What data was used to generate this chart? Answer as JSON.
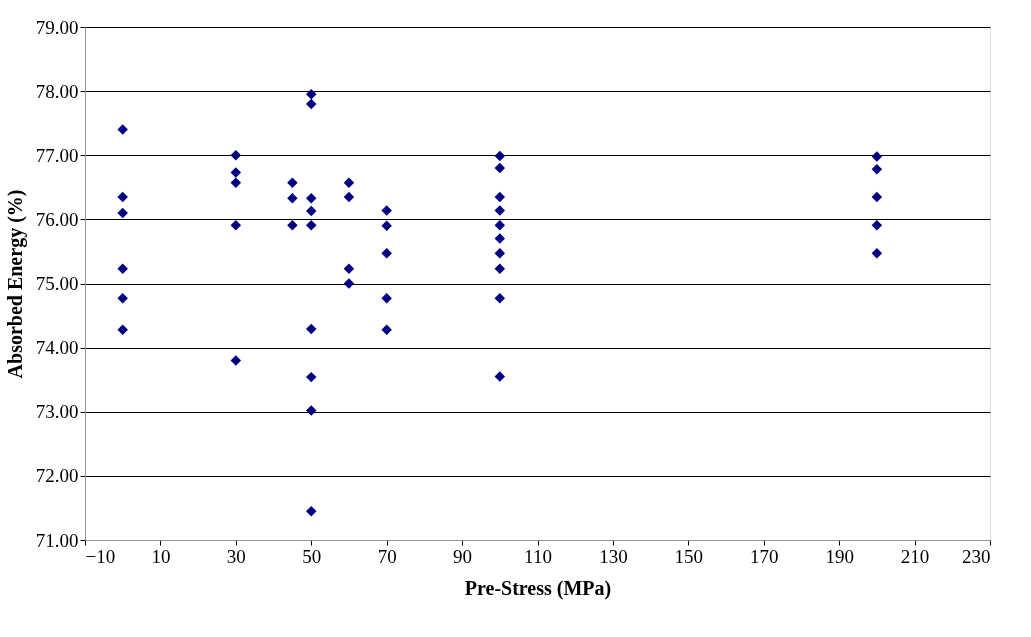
{
  "chart_data": {
    "type": "scatter",
    "xlabel": "Pre-Stress (MPa)",
    "ylabel": "Absorbed Energy (%)",
    "x": [
      0,
      0,
      0,
      0,
      0,
      0,
      30,
      30,
      30,
      30,
      30,
      45,
      45,
      45,
      50,
      50,
      50,
      50,
      50,
      50,
      50,
      50,
      50,
      60,
      60,
      60,
      60,
      70,
      70,
      70,
      70,
      70,
      100,
      100,
      100,
      100,
      100,
      100,
      100,
      100,
      100,
      100,
      200,
      200,
      200,
      200,
      200
    ],
    "values": [
      77.4,
      76.35,
      76.1,
      75.23,
      74.77,
      74.28,
      77.0,
      76.73,
      76.57,
      75.91,
      73.8,
      76.57,
      76.33,
      75.91,
      77.95,
      77.8,
      76.33,
      76.13,
      75.91,
      74.29,
      73.54,
      73.02,
      71.45,
      76.57,
      76.35,
      75.23,
      75.0,
      76.14,
      75.9,
      75.47,
      74.77,
      74.28,
      76.99,
      76.8,
      76.35,
      76.14,
      75.91,
      75.7,
      75.47,
      75.23,
      74.77,
      73.55,
      76.98,
      76.78,
      76.35,
      75.91,
      75.47
    ],
    "color": "#000080",
    "marker": "diamond",
    "xlim": [
      -10,
      230
    ],
    "xticks": [
      -10,
      10,
      30,
      50,
      70,
      90,
      110,
      130,
      150,
      170,
      190,
      210,
      230
    ],
    "ylim": [
      71,
      79
    ],
    "yticks": [
      {
        "value": 71,
        "label": "71.00"
      },
      {
        "value": 72,
        "label": "72.00"
      },
      {
        "value": 73,
        "label": "73.00"
      },
      {
        "value": 74,
        "label": "74.00"
      },
      {
        "value": 75,
        "label": "75.00"
      },
      {
        "value": 76,
        "label": "76.00"
      },
      {
        "value": 77,
        "label": "77.00"
      },
      {
        "value": 78,
        "label": "78.00"
      },
      {
        "value": 79,
        "label": "79.00"
      }
    ],
    "grid": "y"
  }
}
